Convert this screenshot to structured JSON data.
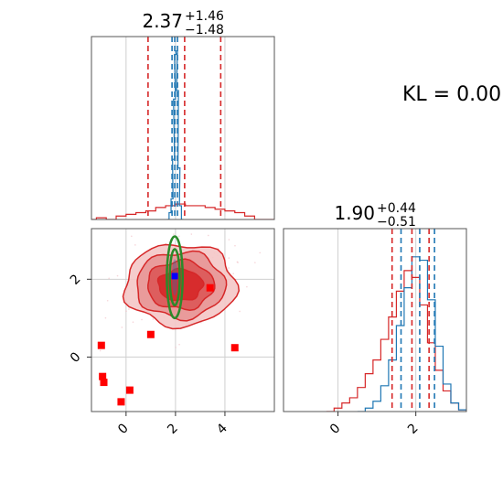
{
  "chart_data": [
    {
      "type": "histogram",
      "panel": "marginal-x",
      "title": {
        "base": "2.37",
        "plus": "+1.46",
        "minus": "−1.48"
      },
      "xlim": [
        -1.4,
        6.0
      ],
      "series": [
        {
          "name": "",
          "color": "#d62728",
          "x": [
            -1.4,
            -1.0,
            -0.6,
            -0.2,
            0.2,
            0.6,
            1.0,
            1.4,
            1.8,
            2.2,
            2.6,
            3.0,
            3.4,
            3.8,
            4.2,
            4.6,
            5.0,
            5.4,
            5.8
          ],
          "y": [
            0.0,
            0.01,
            0.0,
            0.02,
            0.03,
            0.04,
            0.05,
            0.07,
            0.08,
            0.09,
            0.08,
            0.08,
            0.07,
            0.06,
            0.05,
            0.04,
            0.02,
            0.0,
            0.0
          ]
        },
        {
          "name": "",
          "color": "#1f77b4",
          "x": [
            1.7,
            1.78,
            1.86,
            1.92,
            1.96,
            2.0,
            2.04,
            2.08,
            2.14,
            2.2,
            2.28
          ],
          "y": [
            0.0,
            0.04,
            0.12,
            0.35,
            0.7,
            0.96,
            0.98,
            0.75,
            0.3,
            0.08,
            0.0
          ]
        }
      ],
      "quantile_lines": [
        {
          "color": "#d62728",
          "x": [
            0.89,
            2.37,
            3.83
          ]
        },
        {
          "color": "#1f77b4",
          "x": [
            1.86,
            1.97,
            2.08
          ]
        }
      ]
    },
    {
      "type": "scatter",
      "panel": "joint",
      "xlim": [
        -1.4,
        6.0
      ],
      "ylim": [
        -1.4,
        3.3
      ],
      "xticks": [
        {
          "v": 0,
          "label": "0"
        },
        {
          "v": 2,
          "label": "2"
        },
        {
          "v": 4,
          "label": "4"
        }
      ],
      "yticks": [
        {
          "v": 0,
          "label": "0"
        },
        {
          "v": 2,
          "label": "2"
        }
      ],
      "red_points": [
        [
          -1.0,
          0.3
        ],
        [
          -0.95,
          -0.5
        ],
        [
          -0.9,
          -0.65
        ],
        [
          -0.2,
          -1.15
        ],
        [
          0.15,
          -0.85
        ],
        [
          1.0,
          0.58
        ],
        [
          3.4,
          1.78
        ],
        [
          4.4,
          0.24
        ]
      ],
      "blue_point": [
        1.97,
        2.08
      ],
      "contours": [
        {
          "color": "#d62728",
          "fill": "#f4c6c6",
          "cx": 2.2,
          "cy": 1.85,
          "rx": 2.25,
          "ry": 1.05
        },
        {
          "color": "#d62728",
          "fill": "#e89696",
          "cx": 2.2,
          "cy": 1.85,
          "rx": 1.8,
          "ry": 0.85
        },
        {
          "color": "#d62728",
          "fill": "#dc5858",
          "cx": 2.2,
          "cy": 1.85,
          "rx": 1.35,
          "ry": 0.62
        },
        {
          "color": "#d62728",
          "fill": "#d62728",
          "cx": 2.2,
          "cy": 1.85,
          "rx": 0.9,
          "ry": 0.4
        }
      ],
      "green_contours": [
        {
          "cx": 1.97,
          "cy": 2.05,
          "rx": 0.32,
          "ry": 1.05
        },
        {
          "cx": 1.97,
          "cy": 2.05,
          "rx": 0.2,
          "ry": 0.72
        }
      ]
    },
    {
      "type": "histogram",
      "panel": "marginal-y",
      "title": {
        "base": "1.90",
        "plus": "+0.44",
        "minus": "−0.51"
      },
      "xlim": [
        -1.4,
        3.3
      ],
      "xticks": [
        {
          "v": 0,
          "label": "0"
        },
        {
          "v": 2,
          "label": "2"
        }
      ],
      "series": [
        {
          "name": "",
          "color": "#d62728",
          "x": [
            -0.2,
            0.0,
            0.2,
            0.4,
            0.6,
            0.8,
            1.0,
            1.2,
            1.4,
            1.6,
            1.8,
            2.0,
            2.2,
            2.4,
            2.6,
            2.8,
            3.0,
            3.2
          ],
          "y": [
            0.0,
            0.02,
            0.05,
            0.08,
            0.14,
            0.22,
            0.3,
            0.42,
            0.55,
            0.7,
            0.82,
            0.78,
            0.62,
            0.4,
            0.24,
            0.12,
            0.05,
            0.01
          ]
        },
        {
          "name": "",
          "color": "#1f77b4",
          "x": [
            0.6,
            0.8,
            1.0,
            1.2,
            1.4,
            1.6,
            1.8,
            2.0,
            2.2,
            2.4,
            2.6,
            2.8,
            3.0,
            3.2
          ],
          "y": [
            0.0,
            0.02,
            0.06,
            0.15,
            0.3,
            0.5,
            0.72,
            0.9,
            0.88,
            0.65,
            0.38,
            0.16,
            0.05,
            0.01
          ]
        }
      ],
      "quantile_lines": [
        {
          "color": "#d62728",
          "x": [
            1.39,
            1.9,
            2.34
          ]
        },
        {
          "color": "#1f77b4",
          "x": [
            1.62,
            2.1,
            2.48
          ]
        }
      ]
    }
  ],
  "annotation": {
    "text": "KL = 0.00"
  }
}
